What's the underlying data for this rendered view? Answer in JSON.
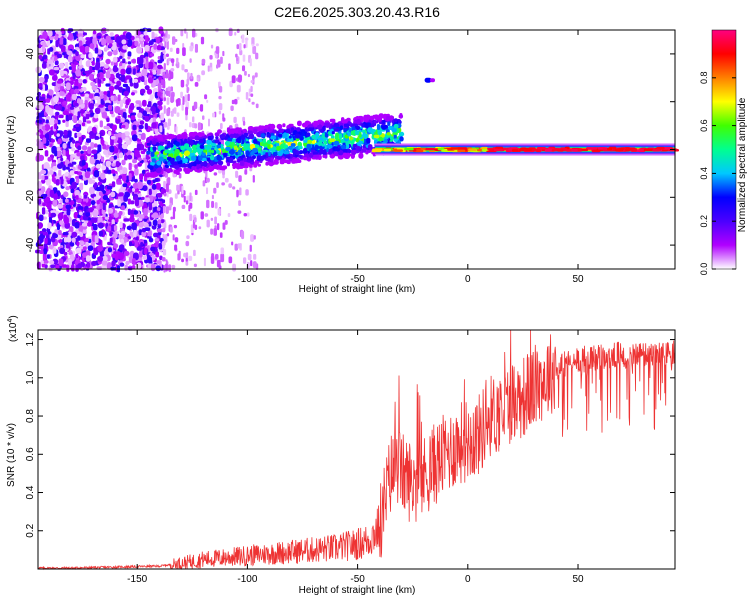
{
  "title": "C2E6.2025.303.20.43.R16",
  "chart_data": [
    {
      "type": "heatmap",
      "title": "C2E6.2025.303.20.43.R16",
      "xlabel": "Height of straight line (km)",
      "ylabel": "Frequency (Hz)",
      "xlim": [
        -195,
        94
      ],
      "ylim": [
        -50,
        50
      ],
      "xticks": [
        -150,
        -100,
        -50,
        0,
        50
      ],
      "xtick_labels": [
        "-150",
        "-100",
        "-50",
        "0",
        "50"
      ],
      "yticks": [
        -40,
        -20,
        0,
        20,
        40
      ],
      "ytick_labels": [
        "-40",
        "-20",
        "0",
        "20",
        "40"
      ],
      "colorbar": {
        "label": "Normalized spectral amplitude",
        "range": [
          0,
          1
        ],
        "ticks": [
          0.0,
          0.2,
          0.4,
          0.6,
          0.8
        ],
        "tick_labels": [
          "0.0",
          "0.2",
          "0.4",
          "0.6",
          "0.8"
        ],
        "colors": [
          "#ffffff",
          "#b000ff",
          "#4b00ff",
          "#0000ff",
          "#00c8ff",
          "#00ff90",
          "#40ff00",
          "#ffff00",
          "#ff8000",
          "#ff0000",
          "#ff0080"
        ]
      },
      "features": [
        {
          "name": "broadband noise",
          "x_range": [
            -195,
            -138
          ],
          "freq_range": [
            -50,
            50
          ],
          "amplitude": 0.2
        },
        {
          "name": "diffuse echo",
          "x_range": [
            -138,
            -95
          ],
          "freq_range": [
            -50,
            50
          ],
          "amplitude": 0.05
        },
        {
          "name": "rising trace",
          "x_range": [
            -145,
            -30
          ],
          "freq_start": -3,
          "freq_end": 7,
          "amplitude": 0.35
        },
        {
          "name": "isolated echo",
          "x": -18,
          "freq": 29,
          "amplitude": 0.3
        },
        {
          "name": "zero-doppler line",
          "x_range": [
            -42,
            94
          ],
          "freq": 0,
          "amplitude": 0.95
        }
      ]
    },
    {
      "type": "line",
      "xlabel": "Height of straight line (km)",
      "ylabel": "SNR (10 * v/v)",
      "y_multiplier": "(x10",
      "y_multiplier_exp": "4",
      "y_multiplier_close": ")",
      "xlim": [
        -195,
        94
      ],
      "ylim": [
        0,
        1.25
      ],
      "xticks": [
        -150,
        -100,
        -50,
        0,
        50
      ],
      "xtick_labels": [
        "-150",
        "-100",
        "-50",
        "0",
        "50"
      ],
      "yticks": [
        0.2,
        0.4,
        0.6,
        0.8,
        1.0,
        1.2
      ],
      "ytick_labels": [
        "0.2",
        "0.4",
        "0.6",
        "0.8",
        "1.0",
        "1.2"
      ],
      "series": [
        {
          "name": "SNR",
          "color": "#ee3333",
          "x": [
            -195,
            -180,
            -160,
            -140,
            -130,
            -120,
            -110,
            -100,
            -90,
            -80,
            -70,
            -60,
            -50,
            -45,
            -40,
            -35,
            -32,
            -30,
            -25,
            -20,
            -15,
            -10,
            -5,
            0,
            5,
            10,
            15,
            20,
            25,
            30,
            35,
            40,
            50,
            60,
            70,
            80,
            90,
            94
          ],
          "values": [
            0.005,
            0.005,
            0.01,
            0.015,
            0.03,
            0.05,
            0.06,
            0.07,
            0.08,
            0.09,
            0.1,
            0.11,
            0.13,
            0.15,
            0.22,
            0.5,
            0.55,
            0.5,
            0.45,
            0.48,
            0.55,
            0.6,
            0.65,
            0.68,
            0.7,
            0.8,
            0.82,
            0.88,
            0.9,
            0.95,
            1.0,
            1.05,
            1.1,
            1.11,
            1.12,
            1.12,
            1.12,
            1.13
          ]
        }
      ]
    }
  ]
}
